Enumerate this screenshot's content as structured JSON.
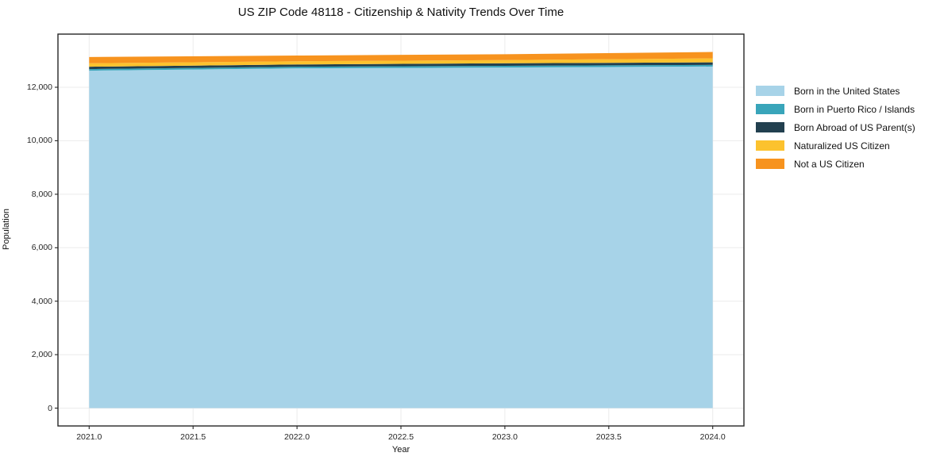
{
  "title": "US ZIP Code 48118 - Citizenship & Nativity Trends Over Time",
  "chart_data": {
    "type": "area",
    "stacked": true,
    "title": "US ZIP Code 48118 - Citizenship & Nativity Trends Over Time",
    "xlabel": "Year",
    "ylabel": "Population",
    "x": [
      2021,
      2022,
      2023,
      2024
    ],
    "series": [
      {
        "name": "Born in the United States",
        "color": "#A7D3E8",
        "values": [
          12620,
          12710,
          12740,
          12775
        ]
      },
      {
        "name": "Born in Puerto Rico / Islands",
        "color": "#39A5BA",
        "values": [
          60,
          58,
          60,
          62
        ]
      },
      {
        "name": "Born Abroad of US Parent(s)",
        "color": "#22404F",
        "values": [
          90,
          85,
          95,
          95
        ]
      },
      {
        "name": "Naturalized US Citizen",
        "color": "#FCC22E",
        "values": [
          125,
          120,
          120,
          150
        ]
      },
      {
        "name": "Not a US Citizen",
        "color": "#F7931E",
        "values": [
          235,
          215,
          220,
          240
        ]
      }
    ],
    "xlim": [
      2020.85,
      2024.15
    ],
    "ylim": [
      -666,
      13988
    ],
    "xticks": {
      "values": [
        2021.0,
        2021.5,
        2022.0,
        2022.5,
        2023.0,
        2023.5,
        2024.0
      ],
      "labels": [
        "2021.0",
        "2021.5",
        "2022.0",
        "2022.5",
        "2023.0",
        "2023.5",
        "2024.0"
      ]
    },
    "yticks": {
      "values": [
        0,
        2000,
        4000,
        6000,
        8000,
        10000,
        12000
      ],
      "labels": [
        "0",
        "2,000",
        "4,000",
        "6,000",
        "8,000",
        "10,000",
        "12,000"
      ]
    },
    "grid": true,
    "legend_position": "right",
    "legend_entries": [
      "Born in the United States",
      "Born in Puerto Rico / Islands",
      "Born Abroad of US Parent(s)",
      "Naturalized US Citizen",
      "Not a US Citizen"
    ]
  }
}
